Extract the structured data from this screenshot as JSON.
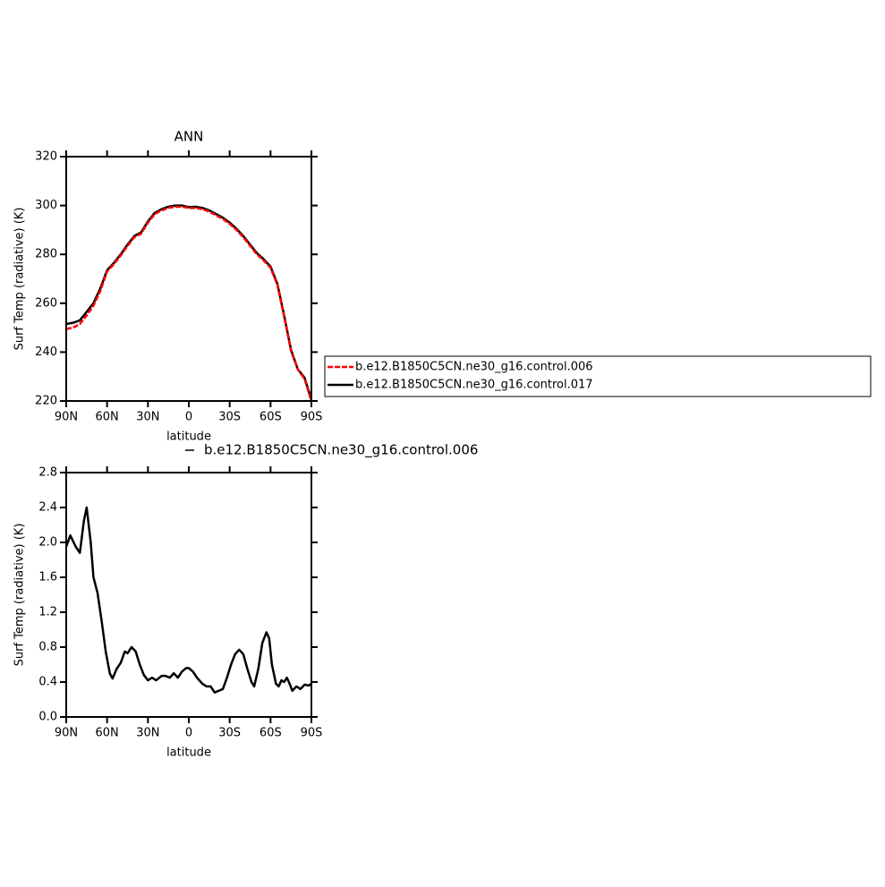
{
  "chart_data": [
    {
      "type": "line",
      "title": "ANN",
      "xlabel": "latitude",
      "ylabel": "Surf Temp (radiative) (K)",
      "xlim": [
        90,
        -90
      ],
      "xticks": [
        {
          "value": 90,
          "label": "90N"
        },
        {
          "value": 60,
          "label": "60N"
        },
        {
          "value": 30,
          "label": "30N"
        },
        0,
        {
          "value": -30,
          "label": "30S"
        },
        {
          "value": -60,
          "label": "60S"
        },
        {
          "value": -90,
          "label": "90S"
        }
      ],
      "ylim": [
        220,
        320
      ],
      "yticks": [
        220,
        240,
        260,
        280,
        300,
        320
      ],
      "x": [
        90,
        85,
        80,
        75,
        70,
        65,
        60,
        55,
        50,
        45,
        40,
        35,
        30,
        25,
        20,
        15,
        10,
        5,
        0,
        -5,
        -10,
        -15,
        -20,
        -25,
        -30,
        -35,
        -40,
        -45,
        -50,
        -55,
        -60,
        -65,
        -70,
        -75,
        -80,
        -85,
        -90
      ],
      "series": [
        {
          "name": "b.e12.B1850C5CN.ne30_g16.control.006",
          "color": "#ff0000",
          "dashed": true,
          "values": [
            249.5,
            250,
            251.5,
            255,
            259,
            265,
            273,
            276,
            279.5,
            283.5,
            287,
            288.5,
            293,
            296.5,
            298,
            299,
            299.5,
            299.5,
            299,
            299,
            298.5,
            297.5,
            296,
            294.5,
            292.5,
            290,
            287,
            283.5,
            280,
            277.5,
            274.5,
            267.5,
            254.5,
            240.5,
            233,
            229,
            220
          ]
        },
        {
          "name": "b.e12.B1850C5CN.ne30_g16.control.017",
          "color": "#000000",
          "dashed": false,
          "values": [
            251.5,
            252,
            253,
            256.5,
            260,
            266,
            273.5,
            276.5,
            280,
            284,
            287.5,
            289,
            293.5,
            297,
            298.5,
            299.5,
            300,
            300,
            299.3,
            299.5,
            299,
            298,
            296.5,
            295,
            293,
            290.5,
            287.5,
            284,
            280.5,
            278,
            275,
            268,
            255,
            241,
            233,
            229.5,
            220.5
          ]
        }
      ]
    },
    {
      "type": "line",
      "xlabel": "latitude",
      "ylabel": "Surf Temp (radiative) (K)",
      "xlim": [
        90,
        -90
      ],
      "xticks": [
        {
          "value": 90,
          "label": "90N"
        },
        {
          "value": 60,
          "label": "60N"
        },
        {
          "value": 30,
          "label": "30N"
        },
        0,
        {
          "value": -30,
          "label": "30S"
        },
        {
          "value": -60,
          "label": "60S"
        },
        {
          "value": -90,
          "label": "90S"
        }
      ],
      "ylim": [
        0,
        2.8
      ],
      "yticks": [
        {
          "value": 0,
          "label": "0.0"
        },
        0.4,
        0.8,
        1.2,
        1.6,
        {
          "value": 2,
          "label": "2.0"
        },
        2.4,
        2.8
      ],
      "x": [
        90,
        87,
        83,
        80,
        77,
        75,
        72,
        70,
        67,
        64,
        61,
        58,
        56,
        53,
        50,
        47,
        45,
        42,
        39,
        36,
        33,
        30,
        27,
        24,
        20,
        17,
        14,
        11,
        8,
        5,
        2,
        0,
        -3,
        -6,
        -10,
        -13,
        -16,
        -19,
        -22,
        -25,
        -28,
        -31,
        -34,
        -37,
        -40,
        -43,
        -46,
        -48,
        -51,
        -54,
        -57,
        -59,
        -61,
        -64,
        -66,
        -68,
        -70,
        -72,
        -74,
        -76,
        -79,
        -82,
        -85,
        -88,
        -90
      ],
      "series": [
        {
          "name": "b.e12.B1850C5CN.ne30_g16.control.006",
          "color": "#000000",
          "dashed": false,
          "values": [
            1.95,
            2.08,
            1.95,
            1.88,
            2.25,
            2.4,
            2.0,
            1.6,
            1.42,
            1.1,
            0.75,
            0.5,
            0.44,
            0.55,
            0.62,
            0.75,
            0.73,
            0.8,
            0.75,
            0.6,
            0.48,
            0.42,
            0.45,
            0.42,
            0.47,
            0.47,
            0.45,
            0.5,
            0.45,
            0.52,
            0.56,
            0.56,
            0.52,
            0.45,
            0.38,
            0.35,
            0.35,
            0.28,
            0.3,
            0.32,
            0.45,
            0.6,
            0.72,
            0.77,
            0.72,
            0.55,
            0.4,
            0.35,
            0.55,
            0.85,
            0.97,
            0.9,
            0.6,
            0.38,
            0.35,
            0.42,
            0.4,
            0.45,
            0.38,
            0.3,
            0.35,
            0.32,
            0.37,
            0.36,
            0.38
          ]
        }
      ]
    }
  ]
}
